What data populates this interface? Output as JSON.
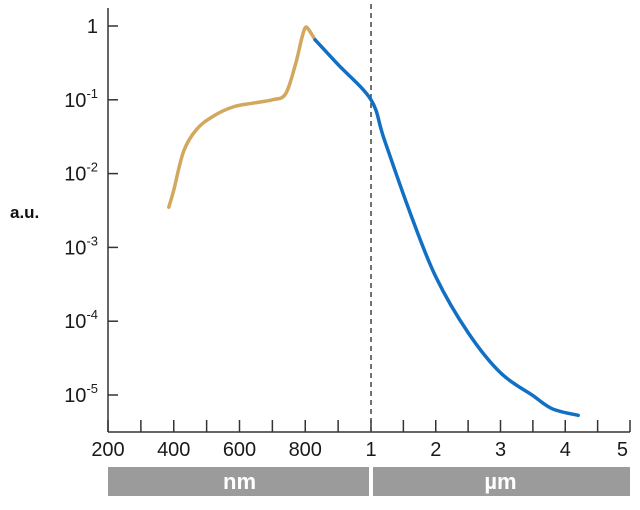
{
  "chart_data": {
    "type": "line",
    "ylabel": "a.u.",
    "yscale": "log",
    "ylim": [
      3e-06,
      1.5
    ],
    "y_ticks": [
      {
        "value": 1,
        "base": "1",
        "exp": ""
      },
      {
        "value": 0.1,
        "base": "10",
        "exp": "-1"
      },
      {
        "value": 0.01,
        "base": "10",
        "exp": "-2"
      },
      {
        "value": 0.001,
        "base": "10",
        "exp": "-3"
      },
      {
        "value": 0.0001,
        "base": "10",
        "exp": "-4"
      },
      {
        "value": 1e-05,
        "base": "10",
        "exp": "-5"
      }
    ],
    "x_segments": [
      {
        "unit": "nm",
        "range": [
          200,
          1000
        ],
        "ticks": [
          "200",
          "400",
          "600",
          "800"
        ]
      },
      {
        "unit": "µm",
        "range": [
          1,
          5
        ],
        "ticks": [
          "1",
          "2",
          "3",
          "4",
          "5"
        ]
      }
    ],
    "divider": {
      "value_nm": 1000,
      "style": "dashed"
    },
    "series": [
      {
        "color": "#d2a85e",
        "x_nm": [
          385,
          400,
          430,
          470,
          520,
          580,
          640,
          700,
          740,
          770,
          790,
          800,
          810,
          830
        ],
        "y": [
          0.0035,
          0.006,
          0.02,
          0.04,
          0.06,
          0.08,
          0.09,
          0.1,
          0.12,
          0.3,
          0.7,
          0.95,
          0.9,
          0.65
        ]
      },
      {
        "color": "#1170c4",
        "x_um": [
          0.83,
          0.9,
          1.0,
          1.2,
          1.6,
          2.0,
          2.5,
          3.0,
          3.5,
          3.8,
          4.2
        ],
        "y": [
          0.65,
          0.3,
          0.1,
          0.03,
          0.003,
          0.0004,
          7e-05,
          2e-05,
          9.8e-06,
          6.5e-06,
          5.3e-06
        ]
      }
    ],
    "colors": {
      "band": "#9b9b9b",
      "axis": "#333333",
      "divider": "#444444"
    }
  }
}
